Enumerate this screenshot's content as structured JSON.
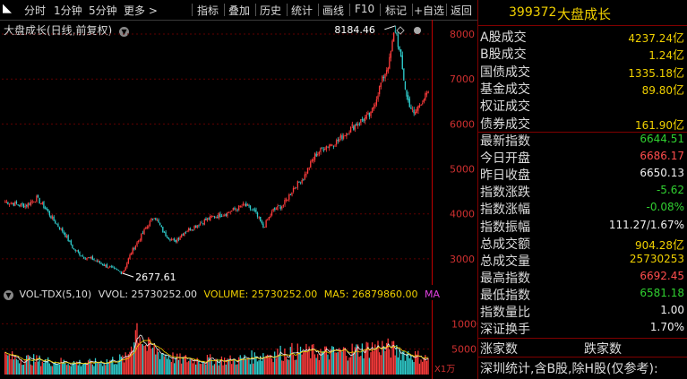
{
  "toolbar": {
    "items": [
      "分时",
      "1分钟",
      "5分钟",
      "更多 >",
      "指标",
      "叠加",
      "历史",
      "统计",
      "画线",
      "F10",
      "标记",
      "+自选",
      "返回"
    ]
  },
  "chart": {
    "title": "大盘成长(日线,前复权)",
    "y_ticks": [
      "8000",
      "7000",
      "6000",
      "5000",
      "4000",
      "3000"
    ],
    "high_label": "8184.46",
    "low_label": "2677.61",
    "colors": {
      "up": "#ff3c3c",
      "down": "#30d0d0",
      "grid": "#600000",
      "axis": "#c00000",
      "ma": "#f0f0f0"
    }
  },
  "volume": {
    "name": "VOL-TDX(5,10)",
    "vvol": "VVOL: 25730252.00",
    "volume": "VOLUME: 25730252.00",
    "ma5": "MA5: 26879860.00",
    "ma10": "MA",
    "y_ticks": [
      "10000",
      "5000"
    ],
    "unit": "X1万"
  },
  "panel": {
    "code": "399372",
    "name": "大盘成长",
    "turnover": [
      {
        "label": "A股成交",
        "value": "4237.24",
        "unit": "亿"
      },
      {
        "label": "B股成交",
        "value": "1.24",
        "unit": "亿"
      },
      {
        "label": "国债成交",
        "value": "1335.18",
        "unit": "亿"
      },
      {
        "label": "基金成交",
        "value": "89.80",
        "unit": "亿"
      },
      {
        "label": "权证成交",
        "value": "",
        "unit": ""
      },
      {
        "label": "债券成交",
        "value": "161.90",
        "unit": "亿"
      }
    ],
    "quote": [
      {
        "label": "最新指数",
        "value": "6644.51",
        "color": "grn"
      },
      {
        "label": "今日开盘",
        "value": "6686.17",
        "color": "red"
      },
      {
        "label": "昨日收盘",
        "value": "6650.13",
        "color": "wht"
      },
      {
        "label": "指数涨跌",
        "value": "-5.62",
        "color": "grn"
      },
      {
        "label": "指数涨幅",
        "value": "-0.08%",
        "color": "grn"
      },
      {
        "label": "指数振幅",
        "value": "111.27/1.67%",
        "color": "wht"
      },
      {
        "label": "总成交额",
        "value": "904.28",
        "unit": "亿",
        "color": "yel"
      },
      {
        "label": "总成交量",
        "value": "25730253",
        "color": "yel"
      },
      {
        "label": "最高指数",
        "value": "6692.45",
        "color": "red"
      },
      {
        "label": "最低指数",
        "value": "6581.18",
        "color": "grn"
      },
      {
        "label": "指数量比",
        "value": "1.00",
        "color": "wht"
      },
      {
        "label": "深证换手",
        "value": "1.70%",
        "color": "wht"
      }
    ],
    "up_count_label": "涨家数",
    "down_count_label": "跌家数",
    "footer": "深圳统计,含B股,除H股(仅参考):"
  }
}
